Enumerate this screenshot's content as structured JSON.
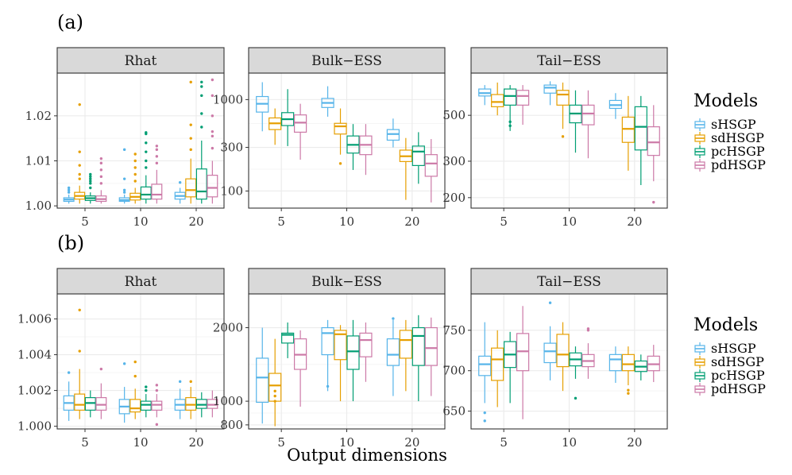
{
  "chart_data": {
    "type": "boxplot",
    "x_title": "Output dimensions",
    "categories": [
      "5",
      "10",
      "20"
    ],
    "models": [
      "sHSGP",
      "sdHSGP",
      "pcHSGP",
      "pdHSGP"
    ],
    "colors": {
      "sHSGP": "#56B4E9",
      "sdHSGP": "#E69F00",
      "pcHSGP": "#009E73",
      "pdHSGP": "#CC79A7"
    },
    "legend": {
      "title": "Models",
      "labels": [
        "sHSGP",
        "sdHSGP",
        "pcHSGP",
        "pdHSGP"
      ]
    },
    "rows": [
      {
        "label": "(a)",
        "panels": [
          {
            "title": "Rhat",
            "scale": "linear",
            "ylim": [
              0.9995,
              1.0295
            ],
            "ticks": [
              1.0,
              1.01,
              1.02
            ],
            "tick_labels": [
              "1.00",
              "1.01",
              "1.02"
            ],
            "boxes": [
              [
                [
                  1.0005,
                  1.001,
                  1.0014,
                  1.0018,
                  1.0025,
                  [
                    1.003,
                    1.0035,
                    1.004
                  ]
                ],
                [
                  1.0005,
                  1.0015,
                  1.0022,
                  1.003,
                  1.0045,
                  [
                    1.006,
                    1.007,
                    1.009,
                    1.012,
                    1.0225
                  ]
                ],
                [
                  1.0005,
                  1.0012,
                  1.0017,
                  1.0022,
                  1.003,
                  [
                    1.004,
                    1.005,
                    1.0055,
                    1.006,
                    1.0065,
                    1.007
                  ]
                ],
                [
                  1.0005,
                  1.001,
                  1.0015,
                  1.0022,
                  1.0035,
                  [
                    1.005,
                    1.0065,
                    1.008,
                    1.0095,
                    1.0105
                  ]
                ]
              ],
              [
                [
                  1.0005,
                  1.001,
                  1.0013,
                  1.0018,
                  1.0025,
                  [
                    1.003,
                    1.0035,
                    1.006,
                    1.0125
                  ]
                ],
                [
                  1.0005,
                  1.0013,
                  1.002,
                  1.0028,
                  1.004,
                  [
                    1.0055,
                    1.007,
                    1.0085,
                    1.01,
                    1.0115
                  ]
                ],
                [
                  1.0005,
                  1.0015,
                  1.0025,
                  1.0042,
                  1.0068,
                  [
                    1.0085,
                    1.01,
                    1.012,
                    1.014,
                    1.016,
                    1.0163
                  ]
                ],
                [
                  1.0005,
                  1.0015,
                  1.0025,
                  1.0048,
                  1.008,
                  [
                    1.0095,
                    1.011,
                    1.0125,
                    1.0133
                  ]
                ]
              ],
              [
                [
                  1.0005,
                  1.0015,
                  1.0022,
                  1.003,
                  1.004,
                  [
                    1.0052
                  ]
                ],
                [
                  1.0005,
                  1.002,
                  1.0035,
                  1.006,
                  1.0105,
                  [
                    1.0125,
                    1.015,
                    1.018,
                    1.0275
                  ]
                ],
                [
                  1.0005,
                  1.0015,
                  1.0032,
                  1.0082,
                  1.0145,
                  [
                    1.0175,
                    1.0205,
                    1.0245,
                    1.0265,
                    1.0275
                  ]
                ],
                [
                  1.0005,
                  1.002,
                  1.004,
                  1.0068,
                  1.01,
                  [
                    1.0128,
                    1.0155,
                    1.0165,
                    1.02,
                    1.0245,
                    1.028
                  ]
                ]
              ]
            ]
          },
          {
            "title": "Bulk−ESS",
            "scale": "log",
            "ylim": [
              65,
              1950
            ],
            "ticks": [
              100,
              300,
              1000
            ],
            "tick_labels": [
              "100",
              "300",
              "1000"
            ],
            "boxes": [
              [
                [
                  450,
                  730,
                  900,
                  1080,
                  1550,
                  []
                ],
                [
                  320,
                  470,
                  550,
                  630,
                  800,
                  []
                ],
                [
                  310,
                  520,
                  610,
                  720,
                  1300,
                  []
                ],
                [
                  220,
                  440,
                  560,
                  680,
                  900,
                  []
                ]
              ],
              [
                [
                  650,
                  820,
                  920,
                  1030,
                  1400,
                  []
                ],
                [
                  250,
                  420,
                  510,
                  550,
                  800,
                  [
                    200
                  ]
                ],
                [
                  170,
                  260,
                  320,
                  400,
                  540,
                  []
                ],
                [
                  150,
                  250,
                  320,
                  400,
                  540,
                  []
                ]
              ],
              [
                [
                  300,
                  360,
                  420,
                  470,
                  620,
                  []
                ],
                [
                  80,
                  210,
                  240,
                  280,
                  380,
                  []
                ],
                [
                  120,
                  190,
                  270,
                  310,
                  440,
                  []
                ],
                [
                  75,
                  145,
                  200,
                  250,
                  370,
                  []
                ]
              ]
            ]
          },
          {
            "title": "Tail−ESS",
            "scale": "log",
            "ylim": [
              178,
              800
            ],
            "ticks": [
              200,
              300,
              500
            ],
            "tick_labels": [
              "200",
              "300",
              "500"
            ],
            "boxes": [
              [
                [
                  560,
                  620,
                  640,
                  670,
                  700,
                  []
                ],
                [
                  500,
                  550,
                  580,
                  630,
                  720,
                  []
                ],
                [
                  420,
                  560,
                  620,
                  670,
                  700,
                  [
                    445,
                    465
                  ]
                ],
                [
                  450,
                  560,
                  620,
                  660,
                  700,
                  []
                ]
              ],
              [
                [
                  560,
                  640,
                  680,
                  700,
                  730,
                  []
                ],
                [
                  430,
                  560,
                  630,
                  660,
                  720,
                  [
                    395
                  ]
                ],
                [
                  330,
                  460,
                  510,
                  560,
                  660,
                  []
                ],
                [
                  310,
                  450,
                  510,
                  560,
                  660,
                  []
                ]
              ],
              [
                [
                  480,
                  540,
                  560,
                  590,
                  640,
                  []
                ],
                [
                  270,
                  370,
                  430,
                  490,
                  620,
                  []
                ],
                [
                  230,
                  340,
                  440,
                  550,
                  620,
                  []
                ],
                [
                  240,
                  320,
                  370,
                  440,
                  560,
                  [
                    190
                  ]
                ]
              ]
            ]
          }
        ]
      },
      {
        "label": "(b)",
        "panels": [
          {
            "title": "Rhat",
            "scale": "linear",
            "ylim": [
              0.99985,
              1.0074
            ],
            "ticks": [
              1.0,
              1.002,
              1.004,
              1.006
            ],
            "tick_labels": [
              "1.000",
              "1.002",
              "1.004",
              "1.006"
            ],
            "boxes": [
              [
                [
                  1.0003,
                  1.0009,
                  1.0013,
                  1.0017,
                  1.0025,
                  [
                    1.003
                  ]
                ],
                [
                  1.0004,
                  1.0009,
                  1.0012,
                  1.0018,
                  1.0032,
                  [
                    1.0042,
                    1.0065
                  ]
                ],
                [
                  1.0005,
                  1.0009,
                  1.0013,
                  1.0016,
                  1.002,
                  []
                ],
                [
                  1.0004,
                  1.0009,
                  1.0012,
                  1.0016,
                  1.0024,
                  [
                    1.0032
                  ]
                ]
              ],
              [
                [
                  1.0002,
                  1.0007,
                  1.0011,
                  1.0015,
                  1.0022,
                  [
                    1.0035
                  ]
                ],
                [
                  1.0004,
                  1.0008,
                  1.001,
                  1.0015,
                  1.0021,
                  [
                    1.0028,
                    1.0036
                  ]
                ],
                [
                  1.0005,
                  1.0009,
                  1.0012,
                  1.0014,
                  1.0018,
                  [
                    1.002,
                    1.0022
                  ]
                ],
                [
                  1.0005,
                  1.0009,
                  1.0012,
                  1.0014,
                  1.0018,
                  [
                    1.0001,
                    1.002,
                    1.0023
                  ]
                ]
              ],
              [
                [
                  1.0004,
                  1.0009,
                  1.0012,
                  1.0015,
                  1.0021,
                  [
                    1.0025
                  ]
                ],
                [
                  1.0004,
                  1.0009,
                  1.0012,
                  1.0016,
                  1.0022,
                  [
                    1.0025
                  ]
                ],
                [
                  1.0005,
                  1.001,
                  1.0012,
                  1.0015,
                  1.0019,
                  []
                ],
                [
                  1.0005,
                  1.001,
                  1.0012,
                  1.0015,
                  1.002,
                  []
                ]
              ]
            ]
          },
          {
            "title": "Bulk−ESS",
            "scale": "log",
            "ylim": [
              770,
              2750
            ],
            "ticks": [
              800,
              1000,
              2000
            ],
            "tick_labels": [
              "800",
              "1000",
              "2000"
            ],
            "boxes": [
              [
                [
                  810,
                  990,
                  1250,
                  1500,
                  2000,
                  []
                ],
                [
                  790,
                  1000,
                  1160,
                  1300,
                  1800,
                  [
                    1000,
                    1050,
                    1100
                  ]
                ],
                [
                  1500,
                  1730,
                  1870,
                  1900,
                  2100,
                  []
                ],
                [
                  950,
                  1350,
                  1550,
                  1800,
                  1950,
                  []
                ]
              ],
              [
                [
                  1100,
                  1550,
                  1900,
                  2000,
                  2150,
                  [
                    1150
                  ]
                ],
                [
                  1000,
                  1480,
                  1880,
                  1950,
                  2050,
                  []
                ],
                [
                  1000,
                  1350,
                  1600,
                  1850,
                  2150,
                  []
                ],
                [
                  1200,
                  1520,
                  1780,
                  1900,
                  2100,
                  []
                ]
              ],
              [
                [
                  1050,
                  1400,
                  1550,
                  1800,
                  2150,
                  [
                    2180
                  ]
                ],
                [
                  1100,
                  1500,
                  1780,
                  1950,
                  2150,
                  []
                ],
                [
                  1000,
                  1400,
                  1850,
                  2000,
                  2250,
                  []
                ],
                [
                  1050,
                  1400,
                  1650,
                  2000,
                  2200,
                  []
                ]
              ]
            ]
          },
          {
            "title": "Tail−ESS",
            "scale": "linear",
            "ylim": [
              628,
              795
            ],
            "ticks": [
              650,
              700,
              750
            ],
            "tick_labels": [
              "650",
              "700",
              "750"
            ],
            "boxes": [
              [
                [
                  660,
                  694,
                  708,
                  718,
                  760,
                  [
                    638,
                    648
                  ]
                ],
                [
                  655,
                  688,
                  714,
                  728,
                  750,
                  []
                ],
                [
                  660,
                  704,
                  720,
                  736,
                  748,
                  []
                ],
                [
                  640,
                  700,
                  724,
                  746,
                  780,
                  []
                ]
              ],
              [
                [
                  688,
                  710,
                  724,
                  734,
                  755,
                  [
                    784
                  ]
                ],
                [
                  675,
                  705,
                  720,
                  745,
                  760,
                  []
                ],
                [
                  690,
                  706,
                  714,
                  722,
                  730,
                  [
                    666
                  ]
                ],
                [
                  690,
                  705,
                  712,
                  720,
                  734,
                  [
                    750,
                    752
                  ]
                ]
              ],
              [
                [
                  685,
                  700,
                  714,
                  720,
                  730,
                  []
                ],
                [
                  682,
                  700,
                  708,
                  720,
                  730,
                  [
                    676,
                    672
                  ]
                ],
                [
                  688,
                  699,
                  705,
                  712,
                  720,
                  []
                ],
                [
                  686,
                  700,
                  708,
                  718,
                  732,
                  []
                ]
              ]
            ]
          }
        ]
      }
    ]
  }
}
